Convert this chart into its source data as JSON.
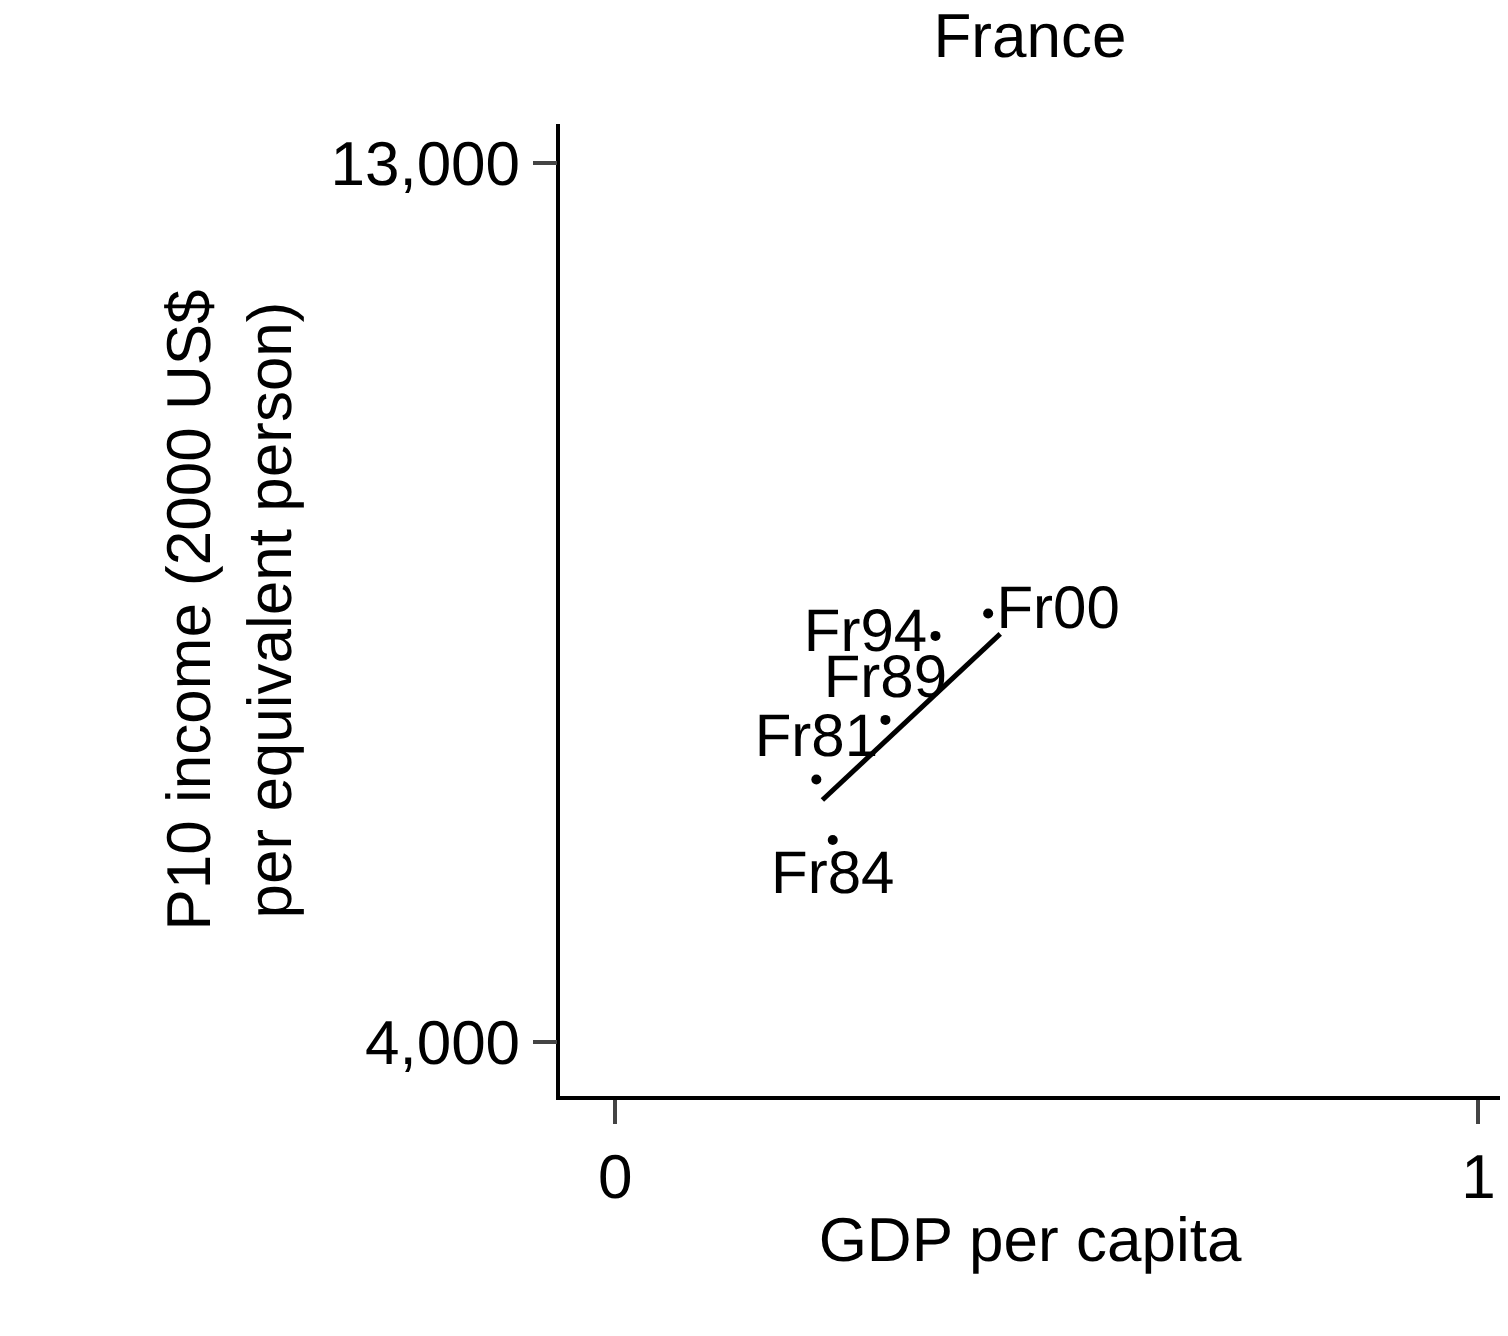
{
  "chart_data": {
    "type": "scatter",
    "title": "France",
    "xlabel": "GDP per capita",
    "ylabel": "P10 income (2000 US$\nper equivalent person)",
    "xlim": [
      -0.064,
      1.025
    ],
    "xticks": [
      0,
      1
    ],
    "ylim": [
      3450,
      13400
    ],
    "yticks": [
      {
        "value": 4000,
        "label": "4,000"
      },
      {
        "value": 13000,
        "label": "13,000"
      }
    ],
    "grid": false,
    "legend": false,
    "series": [
      {
        "marker": "circle",
        "color": "#000000",
        "x": [
          0.233,
          0.252,
          0.313,
          0.371,
          0.432
        ],
        "values": [
          6690,
          6070,
          7300,
          8160,
          8390
        ],
        "value_labels": [
          "Fr81",
          "Fr84",
          "Fr89",
          "Fr94",
          "Fr00"
        ]
      },
      {
        "type": "line",
        "color": "#000000",
        "line_style": "solid",
        "x": [
          0.24,
          0.446
        ],
        "values": [
          6480,
          8180
        ]
      }
    ]
  }
}
